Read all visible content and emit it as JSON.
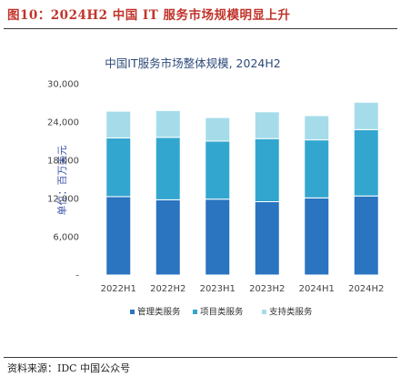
{
  "figure_title": "图10：2024H2 中国 IT 服务市场规模明显上升",
  "source": "资料来源：IDC 中国公众号",
  "colors": {
    "title_red": "#c0342b",
    "management": "#2a74c0",
    "project": "#33a6cf",
    "support": "#a6dcea"
  },
  "chart_data": {
    "type": "bar",
    "stacked": true,
    "title": "中国IT服务市场整体规模, 2024H2",
    "ylabel": "单位：百万美元",
    "xlabel": "",
    "categories": [
      "2022H1",
      "2022H2",
      "2023H1",
      "2023H2",
      "2024H1",
      "2024H2"
    ],
    "ylim": [
      0,
      30000
    ],
    "yticks": [
      "-",
      "6,000",
      "12,000",
      "18,000",
      "24,000",
      "30,000"
    ],
    "ytick_values": [
      0,
      6000,
      12000,
      18000,
      24000,
      30000
    ],
    "legend_position": "bottom",
    "grid": false,
    "series": [
      {
        "name": "管理类服务",
        "color": "#2a74c0",
        "values": [
          12300,
          11800,
          11900,
          11500,
          12100,
          12400
        ]
      },
      {
        "name": "项目类服务",
        "color": "#33a6cf",
        "values": [
          9200,
          9800,
          9100,
          9900,
          9100,
          10400
        ]
      },
      {
        "name": "支持类服务",
        "color": "#a6dcea",
        "values": [
          4200,
          4200,
          3700,
          4200,
          3800,
          4300
        ]
      }
    ]
  }
}
